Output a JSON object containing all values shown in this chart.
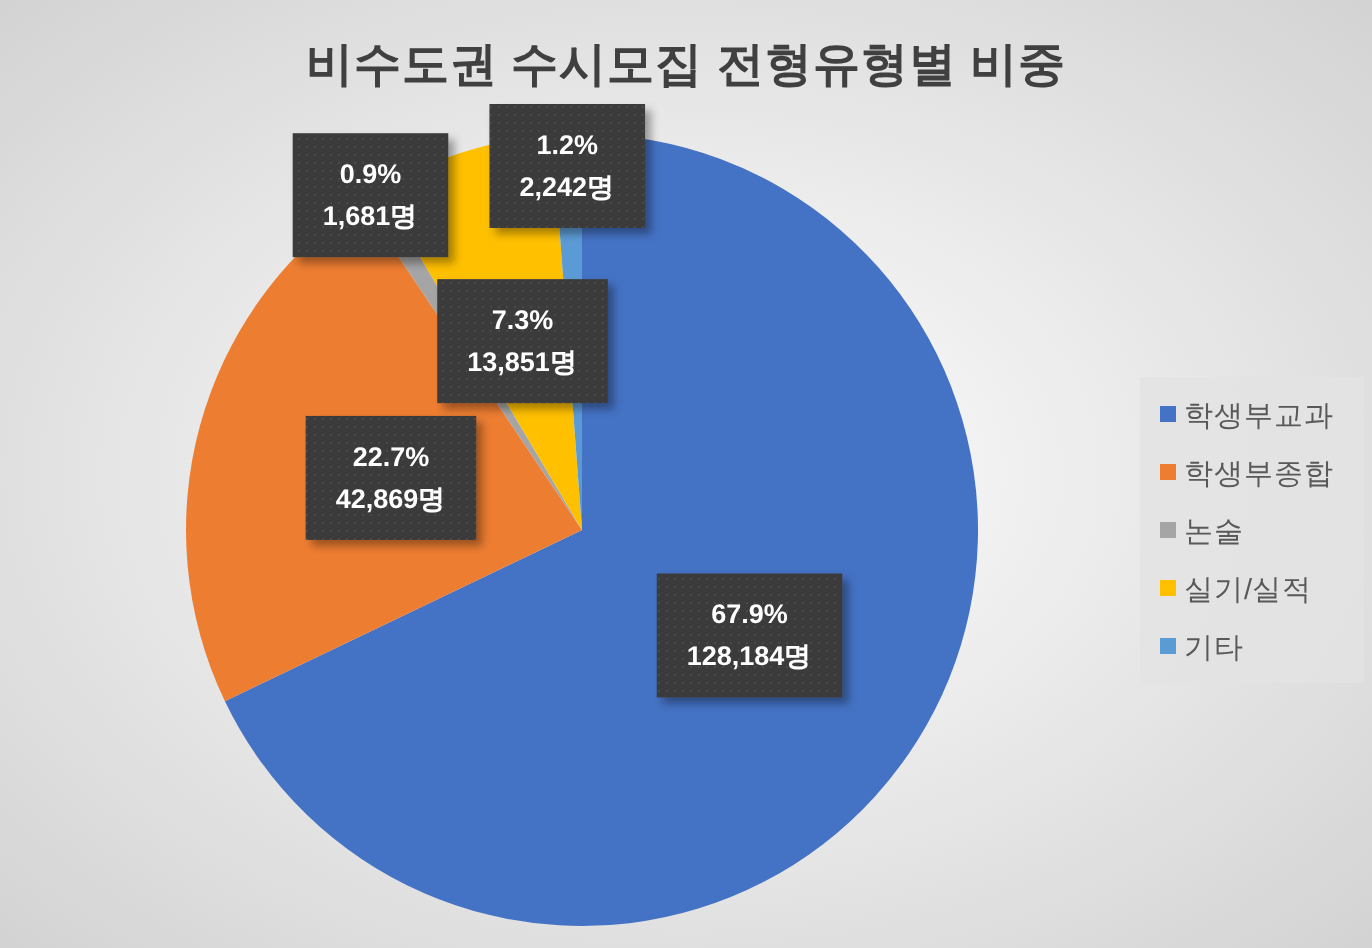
{
  "chart_data": {
    "type": "pie",
    "title": "비수도권 수시모집 전형유형별 비중",
    "categories": [
      "학생부교과",
      "학생부종합",
      "논술",
      "실기/실적",
      "기타"
    ],
    "values": [
      128184,
      42869,
      1681,
      13851,
      2242
    ],
    "colors": [
      "#4472c4",
      "#ed7d31",
      "#a5a5a5",
      "#ffc000",
      "#5b9bd5"
    ],
    "value_labels": [
      "67.9%\n128,184명",
      "22.7%\n42,869명",
      "0.9%\n1,681명",
      "7.3%\n13,851명",
      "1.2%\n2,242명"
    ],
    "legend": "right"
  }
}
